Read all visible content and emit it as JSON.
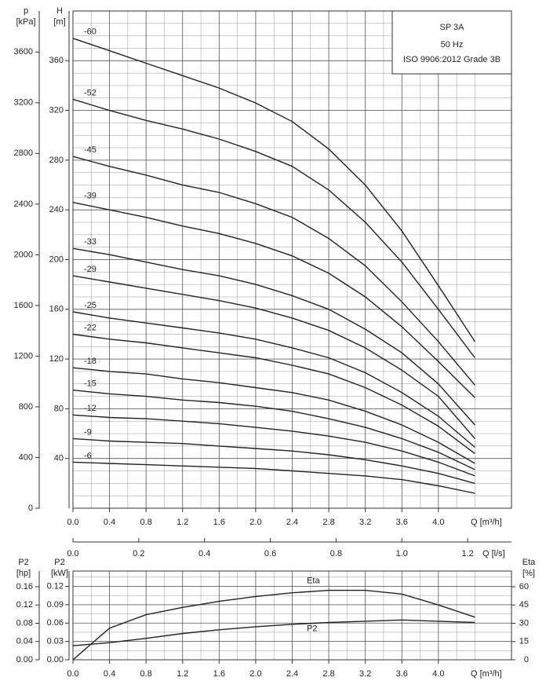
{
  "chart_data": [
    {
      "type": "line",
      "title": "SP 3A",
      "subtitle": "50 Hz",
      "note": "ISO 9906:2012 Grade 3B",
      "x_label": "Q [m³/h]",
      "ylabel": "H",
      "y_unit": "[m]",
      "y2label": "p",
      "y2_unit": "[kPa]",
      "x2_label": "Q [l/s]",
      "x": [
        0,
        0.4,
        0.8,
        1.2,
        1.6,
        2.0,
        2.4,
        2.8,
        3.2,
        3.6,
        4.0,
        4.4
      ],
      "xlim": [
        0,
        4.8
      ],
      "xticks": [
        {
          "value": 0,
          "label": "0.0"
        },
        0.4,
        0.8,
        1.2,
        1.6,
        {
          "value": 2,
          "label": "2.0"
        },
        2.4,
        2.8,
        3.2,
        3.6,
        {
          "value": 4,
          "label": "4.0"
        }
      ],
      "x2lim": [
        0,
        1.3333
      ],
      "x2ticks": [
        {
          "value": 0,
          "label": "0.0"
        },
        0.2,
        0.4,
        0.6,
        0.8,
        {
          "value": 1,
          "label": "1.0"
        },
        1.2
      ],
      "ylim": [
        0,
        400
      ],
      "yticks": [
        40,
        80,
        120,
        160,
        200,
        240,
        280,
        320,
        360
      ],
      "y2lim": [
        0,
        3924
      ],
      "y2ticks": [
        0,
        400,
        800,
        1200,
        1600,
        2000,
        2400,
        2800,
        3200,
        3600
      ],
      "grid": true,
      "series": [
        {
          "name": "-60",
          "color": "#222222",
          "values": [
            378,
            368,
            358,
            348,
            338,
            326,
            311,
            289,
            260,
            223,
            179,
            134
          ]
        },
        {
          "name": "-52",
          "color": "#222222",
          "values": [
            329,
            320,
            312,
            305,
            297,
            287,
            275,
            256,
            230,
            198,
            160,
            121
          ]
        },
        {
          "name": "-45",
          "color": "#222222",
          "values": [
            283,
            275,
            268,
            260,
            254,
            245,
            234,
            217,
            195,
            166,
            134,
            99
          ]
        },
        {
          "name": "-39",
          "color": "#222222",
          "values": [
            246,
            240,
            234,
            227,
            221,
            213,
            203,
            189,
            170,
            146,
            118,
            89
          ]
        },
        {
          "name": "-33",
          "color": "#222222",
          "values": [
            209,
            204,
            198,
            192,
            187,
            180,
            171,
            160,
            144,
            125,
            100,
            67
          ]
        },
        {
          "name": "-29",
          "color": "#222222",
          "values": [
            187,
            182,
            177,
            172,
            167,
            161,
            153,
            143,
            129,
            111,
            90,
            56
          ]
        },
        {
          "name": "-25",
          "color": "#222222",
          "values": [
            158,
            153,
            149,
            145,
            141,
            136,
            129,
            121,
            109,
            93,
            74,
            49
          ]
        },
        {
          "name": "-22",
          "color": "#222222",
          "values": [
            140,
            136,
            133,
            129,
            125,
            121,
            115,
            108,
            97,
            83,
            66,
            44
          ]
        },
        {
          "name": "-18",
          "color": "#222222",
          "values": [
            113,
            110,
            108,
            104,
            101,
            97,
            93,
            87,
            78,
            67,
            53,
            36
          ]
        },
        {
          "name": "-15",
          "color": "#222222",
          "values": [
            95,
            92,
            90,
            87,
            85,
            82,
            78,
            72,
            65,
            56,
            45,
            31
          ]
        },
        {
          "name": "-12",
          "color": "#222222",
          "values": [
            75,
            73,
            72,
            70,
            68,
            65,
            62,
            58,
            53,
            46,
            37,
            26
          ]
        },
        {
          "name": "-9",
          "color": "#222222",
          "values": [
            56,
            54,
            53,
            52,
            50,
            48,
            46,
            43,
            39,
            34,
            28,
            20
          ]
        },
        {
          "name": "-6",
          "color": "#222222",
          "values": [
            37,
            36,
            35,
            34,
            33,
            32,
            30,
            28,
            26,
            23,
            18,
            12
          ]
        }
      ]
    },
    {
      "type": "line",
      "x_label": "Q [m³/h]",
      "ylabel": "P2",
      "y_unit": "[kW]",
      "y2label": "Eta",
      "y2_unit": "[%]",
      "y3label": "P2",
      "y3_unit": "[hp]",
      "x": [
        0,
        0.4,
        0.8,
        1.2,
        1.6,
        2.0,
        2.4,
        2.8,
        3.2,
        3.6,
        4.0,
        4.4
      ],
      "xlim": [
        0,
        4.8
      ],
      "xticks": [
        {
          "value": 0,
          "label": "0.0"
        },
        0.4,
        0.8,
        1.2,
        1.6,
        {
          "value": 2,
          "label": "2.0"
        },
        2.4,
        2.8,
        3.2,
        3.6,
        {
          "value": 4,
          "label": "4.0"
        }
      ],
      "ylim": [
        0,
        0.145
      ],
      "yticks": [
        {
          "value": 0,
          "label": "0.00"
        },
        0.03,
        0.06,
        0.09,
        0.12
      ],
      "y2lim": [
        0,
        72.9
      ],
      "y2ticks": [
        0,
        15,
        30,
        45,
        60
      ],
      "y3lim": [
        0,
        0.1944
      ],
      "y3ticks": [
        {
          "value": 0,
          "label": "0.00"
        },
        0.04,
        0.08,
        0.12,
        0.16
      ],
      "grid": true,
      "series": [
        {
          "name": "Eta",
          "color": "#222222",
          "axis": "y2",
          "values": [
            0,
            26,
            37,
            43,
            48,
            52,
            55,
            57,
            57,
            54,
            45,
            35
          ]
        },
        {
          "name": "P2",
          "color": "#222222",
          "values": [
            0.023,
            0.028,
            0.035,
            0.043,
            0.049,
            0.054,
            0.058,
            0.061,
            0.063,
            0.065,
            0.063,
            0.061
          ]
        }
      ]
    }
  ]
}
